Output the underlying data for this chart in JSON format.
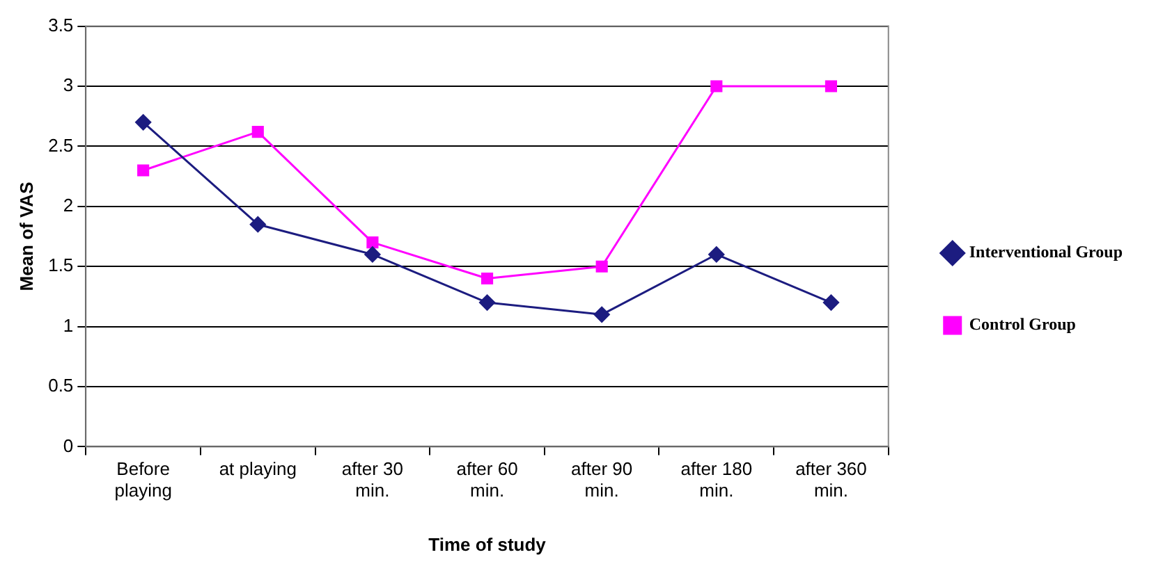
{
  "chart_data": {
    "type": "line",
    "xlabel": "Time of study",
    "ylabel": "Mean of VAS",
    "categories": [
      "Before playing",
      "at playing",
      "after 30 min.",
      "after 60 min.",
      "after 90 min.",
      "after 180 min.",
      "after 360 min."
    ],
    "series": [
      {
        "name": "Interventional Group",
        "color": "#1c1c80",
        "marker": "diamond",
        "values": [
          2.7,
          1.85,
          1.6,
          1.2,
          1.1,
          1.6,
          1.2
        ]
      },
      {
        "name": "Control Group",
        "color": "#ff00ff",
        "marker": "square",
        "values": [
          2.3,
          2.62,
          1.7,
          1.4,
          1.5,
          3.0,
          3.0
        ]
      }
    ],
    "ylim": [
      0,
      3.5
    ],
    "yticks": [
      0,
      0.5,
      1,
      1.5,
      2,
      2.5,
      3,
      3.5
    ],
    "grid": "y",
    "legend": "right",
    "line_style": "solid"
  }
}
